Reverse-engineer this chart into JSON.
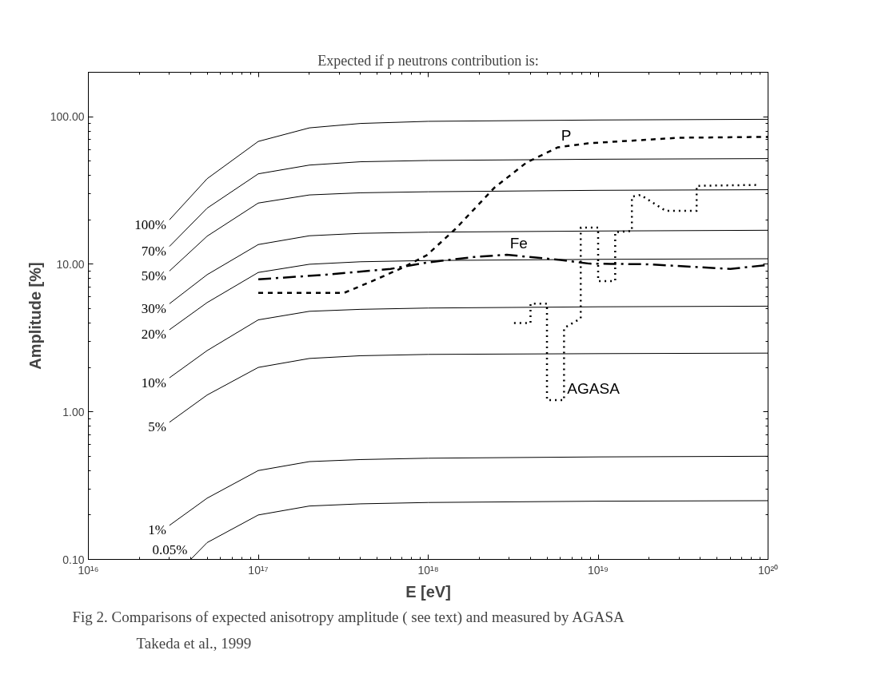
{
  "chart_data": {
    "type": "line",
    "subtitle": "Expected if p neutrons contribution is:",
    "xlabel": "E [eV]",
    "ylabel": "Amplitude [%]",
    "log": "xy",
    "grid": false,
    "marker": "none",
    "xlim": [
      1e+16,
      1e+20
    ],
    "ylim": [
      0.1,
      200
    ],
    "xticks": [
      {
        "value": 1e+16,
        "label": "10¹⁶"
      },
      {
        "value": 1e+17,
        "label": "10¹⁷"
      },
      {
        "value": 1e+18,
        "label": "10¹⁸"
      },
      {
        "value": 1e+19,
        "label": "10¹⁹"
      },
      {
        "value": 1e+20,
        "label": "10²⁰"
      }
    ],
    "yticks": [
      {
        "value": 0.1,
        "label": "0.10"
      },
      {
        "value": 1,
        "label": "1.00"
      },
      {
        "value": 10,
        "label": "10.00"
      },
      {
        "value": 100,
        "label": "100.00"
      }
    ],
    "x": [
      3e+16,
      5e+16,
      1e+17,
      2e+17,
      4e+17,
      1e+18,
      1e+19,
      1e+20
    ],
    "series": [
      {
        "name": "100%",
        "color": "#000000",
        "line_style": "solid",
        "values": [
          20,
          38,
          68,
          84,
          90,
          93,
          95,
          96
        ]
      },
      {
        "name": "70%",
        "color": "#000000",
        "line_style": "solid",
        "values": [
          13.2,
          24,
          41,
          47,
          49.5,
          50.5,
          51.5,
          52
        ]
      },
      {
        "name": "50%",
        "color": "#000000",
        "line_style": "solid",
        "values": [
          9.0,
          15.5,
          26,
          29.5,
          30.5,
          31,
          31.7,
          32
        ]
      },
      {
        "name": "30%",
        "color": "#000000",
        "line_style": "solid",
        "values": [
          5.4,
          8.5,
          13.6,
          15.6,
          16.2,
          16.5,
          16.8,
          17
        ]
      },
      {
        "name": "20%",
        "color": "#000000",
        "line_style": "solid",
        "values": [
          3.6,
          5.5,
          8.8,
          10.0,
          10.4,
          10.6,
          10.8,
          10.9
        ]
      },
      {
        "name": "10%",
        "color": "#000000",
        "line_style": "solid",
        "values": [
          1.7,
          2.6,
          4.2,
          4.8,
          4.95,
          5.05,
          5.15,
          5.2
        ]
      },
      {
        "name": "5%",
        "color": "#000000",
        "line_style": "solid",
        "values": [
          0.85,
          1.3,
          2.0,
          2.3,
          2.4,
          2.45,
          2.48,
          2.5
        ]
      },
      {
        "name": "1%",
        "color": "#000000",
        "line_style": "solid",
        "values": [
          0.17,
          0.26,
          0.4,
          0.46,
          0.475,
          0.485,
          0.495,
          0.5
        ]
      },
      {
        "name": "0.05%",
        "color": "#000000",
        "line_style": "solid",
        "x": [
          4e+16,
          5e+16,
          1e+17,
          2e+17,
          4e+17,
          1e+18,
          1e+19,
          1e+20
        ],
        "values": [
          0.1,
          0.13,
          0.2,
          0.23,
          0.238,
          0.243,
          0.248,
          0.25
        ]
      },
      {
        "color": "#000000",
        "line_style": "dashdot",
        "x": [
          1e+17,
          2.5e+17,
          6e+17,
          1e+18,
          1.86e+18,
          2.9e+18,
          6e+18,
          8.9e+18,
          1.95e+19,
          6e+19,
          1e+20
        ],
        "values": [
          7.9,
          8.5,
          9.3,
          10.3,
          11.2,
          11.6,
          10.7,
          10.1,
          10.0,
          9.3,
          9.9
        ]
      },
      {
        "color": "#000000",
        "line_style": "dashed",
        "x": [
          1e+17,
          3.2e+17,
          4.7e+17,
          7.1e+17,
          9.8e+17,
          1.45e+18,
          2.45e+18,
          3.8e+18,
          5.8e+18,
          8.7e+18,
          3e+19,
          1e+20
        ],
        "values": [
          6.4,
          6.4,
          7.7,
          9.5,
          11.5,
          17.4,
          33,
          49,
          62,
          66,
          72,
          73
        ]
      },
      {
        "color": "#000000",
        "line_style": "dotted",
        "x": [
          3.2e+18,
          4e+18,
          4e+18,
          5e+18,
          5e+18,
          6.3e+18,
          6.3e+18,
          7.9e+18,
          7.9e+18,
          1e+19,
          1e+19,
          1.26e+19,
          1.26e+19,
          1.58e+19,
          1.58e+19,
          1.78e+19,
          2.5e+19,
          3.8e+19,
          3.8e+19,
          8.9e+19
        ],
        "values": [
          4.0,
          4.0,
          5.4,
          5.4,
          1.2,
          1.2,
          3.7,
          4.3,
          17.7,
          17.7,
          7.7,
          7.7,
          16.5,
          16.8,
          28.7,
          29.5,
          23,
          23,
          34,
          34.5
        ]
      }
    ],
    "annotations": [
      {
        "text": "P",
        "x": 5.8e+18,
        "y": 62
      },
      {
        "text": "Fe",
        "x": 2.9e+18,
        "y": 11.6
      },
      {
        "text": "AGASA",
        "x": 6.3e+18,
        "y": 1.2
      },
      "Fig 2.  Comparisons of expected anisotropy amplitude ( see text) and measured by AGASA",
      "Takeda et al., 1999"
    ]
  }
}
